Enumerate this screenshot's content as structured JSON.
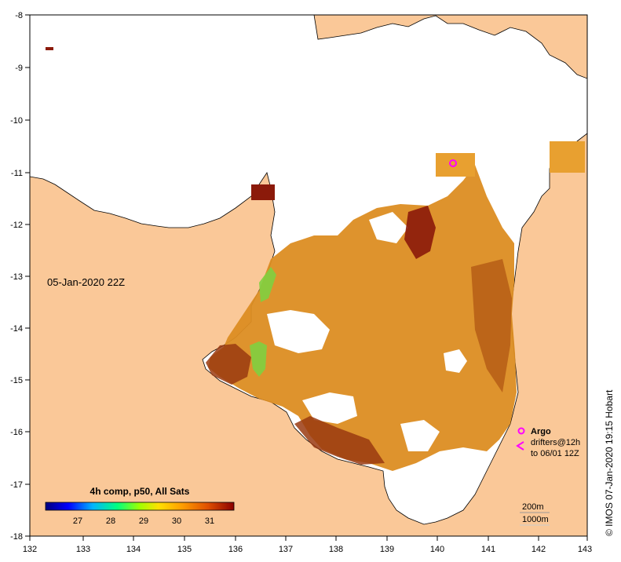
{
  "map": {
    "date_label": "05-Jan-2020 22Z",
    "credit": "© IMOS 07-Jan-2020 19:15 Hobart",
    "x_ticks": [
      "132",
      "133",
      "134",
      "135",
      "136",
      "137",
      "138",
      "139",
      "140",
      "141",
      "142",
      "143"
    ],
    "y_ticks": [
      "-8",
      "-9",
      "-10",
      "-11",
      "-12",
      "-13",
      "-14",
      "-15",
      "-16",
      "-17",
      "-18"
    ],
    "colors": {
      "land": "#fac898",
      "ocean_nodata": "#ffffff",
      "sst_mid": "#d98c1a",
      "sst_hot": "#8b1a0a",
      "argo": "#ff00ff"
    }
  },
  "colorbar": {
    "title": "4h comp, p50, All Sats",
    "ticks": [
      "27",
      "28",
      "29",
      "30",
      "31"
    ]
  },
  "legend": {
    "argo": "Argo",
    "drifters_line1": "drifters@12h",
    "drifters_line2": "to 06/01 12Z",
    "depth_200": "200m",
    "depth_1000": "1000m"
  }
}
